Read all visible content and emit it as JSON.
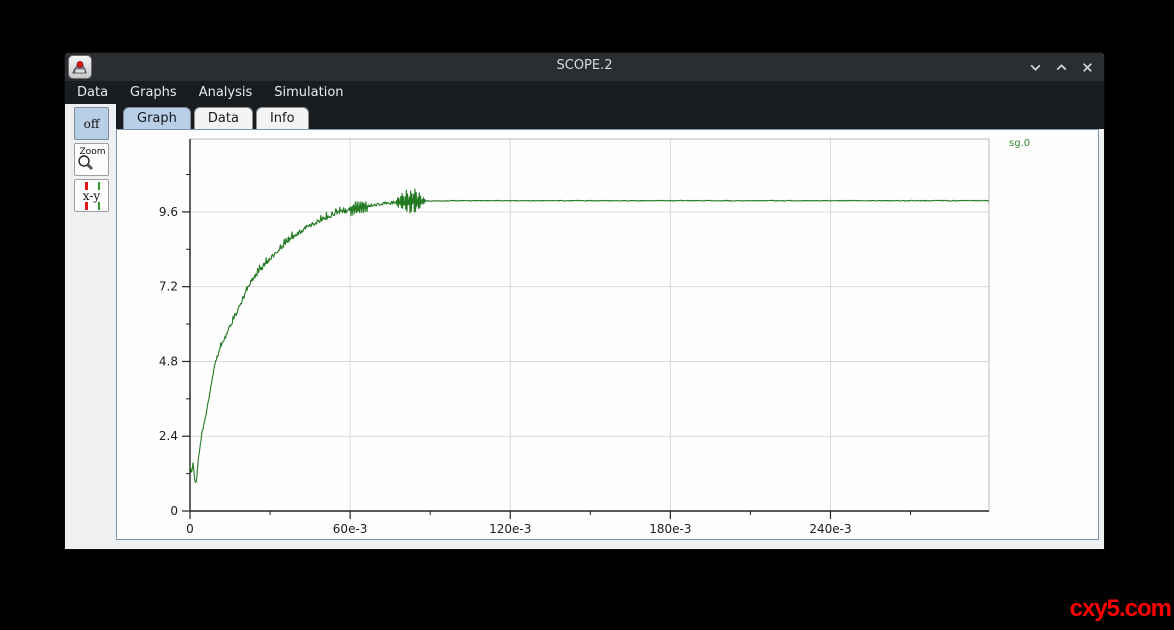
{
  "window": {
    "title": "SCOPE.2",
    "app_icon": "scope-app-icon",
    "controls": {
      "minimize_icon": "chevron-down",
      "maximize_icon": "chevron-up",
      "close_icon": "x"
    }
  },
  "menu": {
    "items": [
      {
        "label": "Data"
      },
      {
        "label": "Graphs"
      },
      {
        "label": "Analysis"
      },
      {
        "label": "Simulation"
      }
    ]
  },
  "toolbar": {
    "off_label": "off",
    "zoom_label": "Zoom",
    "zoom_icon": "magnifier-icon",
    "xy_label": "x-y"
  },
  "tabs": [
    {
      "label": "Graph",
      "active": true
    },
    {
      "label": "Data",
      "active": false
    },
    {
      "label": "Info",
      "active": false
    }
  ],
  "colors": {
    "desktop_bg": "#000000",
    "titlebar_bg": "#2a2e33",
    "menubar_bg": "#1a1d20",
    "content_bg": "#eef0f1",
    "panel_border": "#7b94b5",
    "selected_tab_bg": "#b9cee7",
    "grid": "#d9d9d9",
    "frame_gray": "#b9b9b9",
    "axis": "#222222",
    "curve_green": "#237a23",
    "legend_green": "#2e8b2e",
    "watermark_red": "#fe0000"
  },
  "watermark": "cxy5.com",
  "chart_data": {
    "type": "line",
    "title": "",
    "legend_position": "top-right-outside",
    "grid": true,
    "xlim": [
      0,
      0.2994
    ],
    "ylim": [
      0,
      11.94
    ],
    "x_ticks": {
      "major": [
        0,
        0.06,
        0.12,
        0.18,
        0.24
      ],
      "labels": [
        "0",
        "60e-3",
        "120e-3",
        "180e-3",
        "240e-3"
      ],
      "minor": [
        0.03,
        0.09,
        0.15,
        0.21,
        0.27
      ]
    },
    "y_ticks": {
      "major": [
        0,
        2.4,
        4.8,
        7.2,
        9.6
      ],
      "labels": [
        "0",
        "2.4",
        "4.8",
        "7.2",
        "9.6"
      ],
      "minor": [
        1.2,
        3.6,
        6.0,
        8.4,
        10.8
      ]
    },
    "series": [
      {
        "name": "sg.0",
        "color": "#237a23",
        "keypoints": [
          [
            0.0,
            1.45
          ],
          [
            0.0006,
            1.2
          ],
          [
            0.0012,
            1.55
          ],
          [
            0.0018,
            0.95
          ],
          [
            0.0024,
            0.9
          ],
          [
            0.003,
            1.6
          ],
          [
            0.0043,
            2.4
          ],
          [
            0.006,
            3.1
          ],
          [
            0.0095,
            4.8
          ],
          [
            0.012,
            5.35
          ],
          [
            0.015,
            5.9
          ],
          [
            0.018,
            6.45
          ],
          [
            0.022,
            7.2
          ],
          [
            0.026,
            7.7
          ],
          [
            0.03,
            8.1
          ],
          [
            0.034,
            8.45
          ],
          [
            0.038,
            8.75
          ],
          [
            0.042,
            9.0
          ],
          [
            0.046,
            9.2
          ],
          [
            0.05,
            9.38
          ],
          [
            0.054,
            9.52
          ],
          [
            0.058,
            9.62
          ],
          [
            0.062,
            9.72
          ],
          [
            0.066,
            9.79
          ],
          [
            0.07,
            9.84
          ],
          [
            0.075,
            9.89
          ],
          [
            0.08,
            9.93
          ],
          [
            0.088,
            9.95
          ],
          [
            0.1,
            9.96
          ],
          [
            0.2994,
            9.96
          ]
        ],
        "noise": {
          "ripple_amp_rise": 0.16,
          "burst1": {
            "t_start": 0.06,
            "t_end": 0.0665,
            "amp": 0.22
          },
          "burst2": {
            "t_start": 0.0765,
            "t_end": 0.0885,
            "amp": 0.45
          },
          "settled_amp": 0.012
        }
      }
    ]
  }
}
